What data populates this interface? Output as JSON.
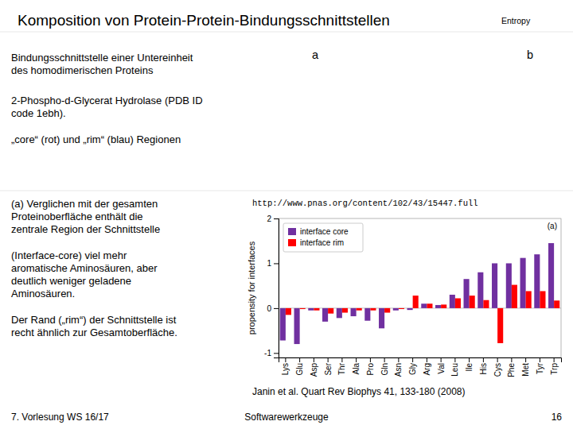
{
  "chart_data": {
    "type": "bar",
    "title": "Komposition von Protein-Protein-Bindungsschnittstellen",
    "categories": [
      "Lys",
      "Glu",
      "Asp",
      "Ser",
      "Thr",
      "Ala",
      "Pro",
      "Gln",
      "Asn",
      "Gly",
      "Arg",
      "Val",
      "Leu",
      "Ile",
      "His",
      "Cys",
      "Phe",
      "Met",
      "Tyr",
      "Trp"
    ],
    "series": [
      {
        "name": "interface core",
        "color": "#7030A0",
        "values": [
          -0.72,
          -0.8,
          -0.05,
          -0.3,
          -0.22,
          -0.18,
          -0.28,
          -0.45,
          -0.05,
          -0.04,
          0.1,
          0.07,
          0.3,
          0.65,
          0.8,
          1.0,
          1.0,
          1.12,
          1.2,
          1.45
        ]
      },
      {
        "name": "interface rim",
        "color": "#FF0000",
        "values": [
          -0.15,
          -0.02,
          -0.05,
          -0.12,
          -0.1,
          -0.05,
          -0.05,
          -0.1,
          -0.02,
          0.28,
          0.1,
          0.08,
          0.22,
          0.28,
          0.18,
          -0.78,
          0.52,
          0.38,
          0.38,
          0.17
        ]
      }
    ],
    "ylabel": "propensity for interfaces",
    "ylim": [
      -1.1,
      2.0
    ],
    "yticks": [
      -1,
      0,
      1,
      2
    ],
    "legend": "upper left",
    "annotations": [
      "Bindungsschnittstelle einer Untereinheit\ndes homodimerischen Proteins",
      "2-Phospho-d-Glycerat Hydrolase (PDB ID\ncode 1ebh).",
      "„core“ (rot) und „rim“ (blau) Regionen",
      "(a) Verglichen mit der gesamten\nProteinoberfläche enthält die\nzentrale Region der Schnittstelle",
      "(Interface-core) viel mehr\naromatische Aminosäuren, aber\ndeutlich weniger geladene\nAminosäuren.",
      "Der Rand („rim“) der Schnittstelle ist\nrecht ähnlich zur Gesamtoberfläche.",
      "http://www.pnas.org/content/102/43/15447.full",
      "Janin et al. Quart Rev Biophys 41, 133-180 (2008)",
      "7. Vorlesung WS 16/17",
      "Softwarewerkzeuge",
      "16",
      "Entropy",
      "a",
      "b",
      "(a)"
    ]
  }
}
